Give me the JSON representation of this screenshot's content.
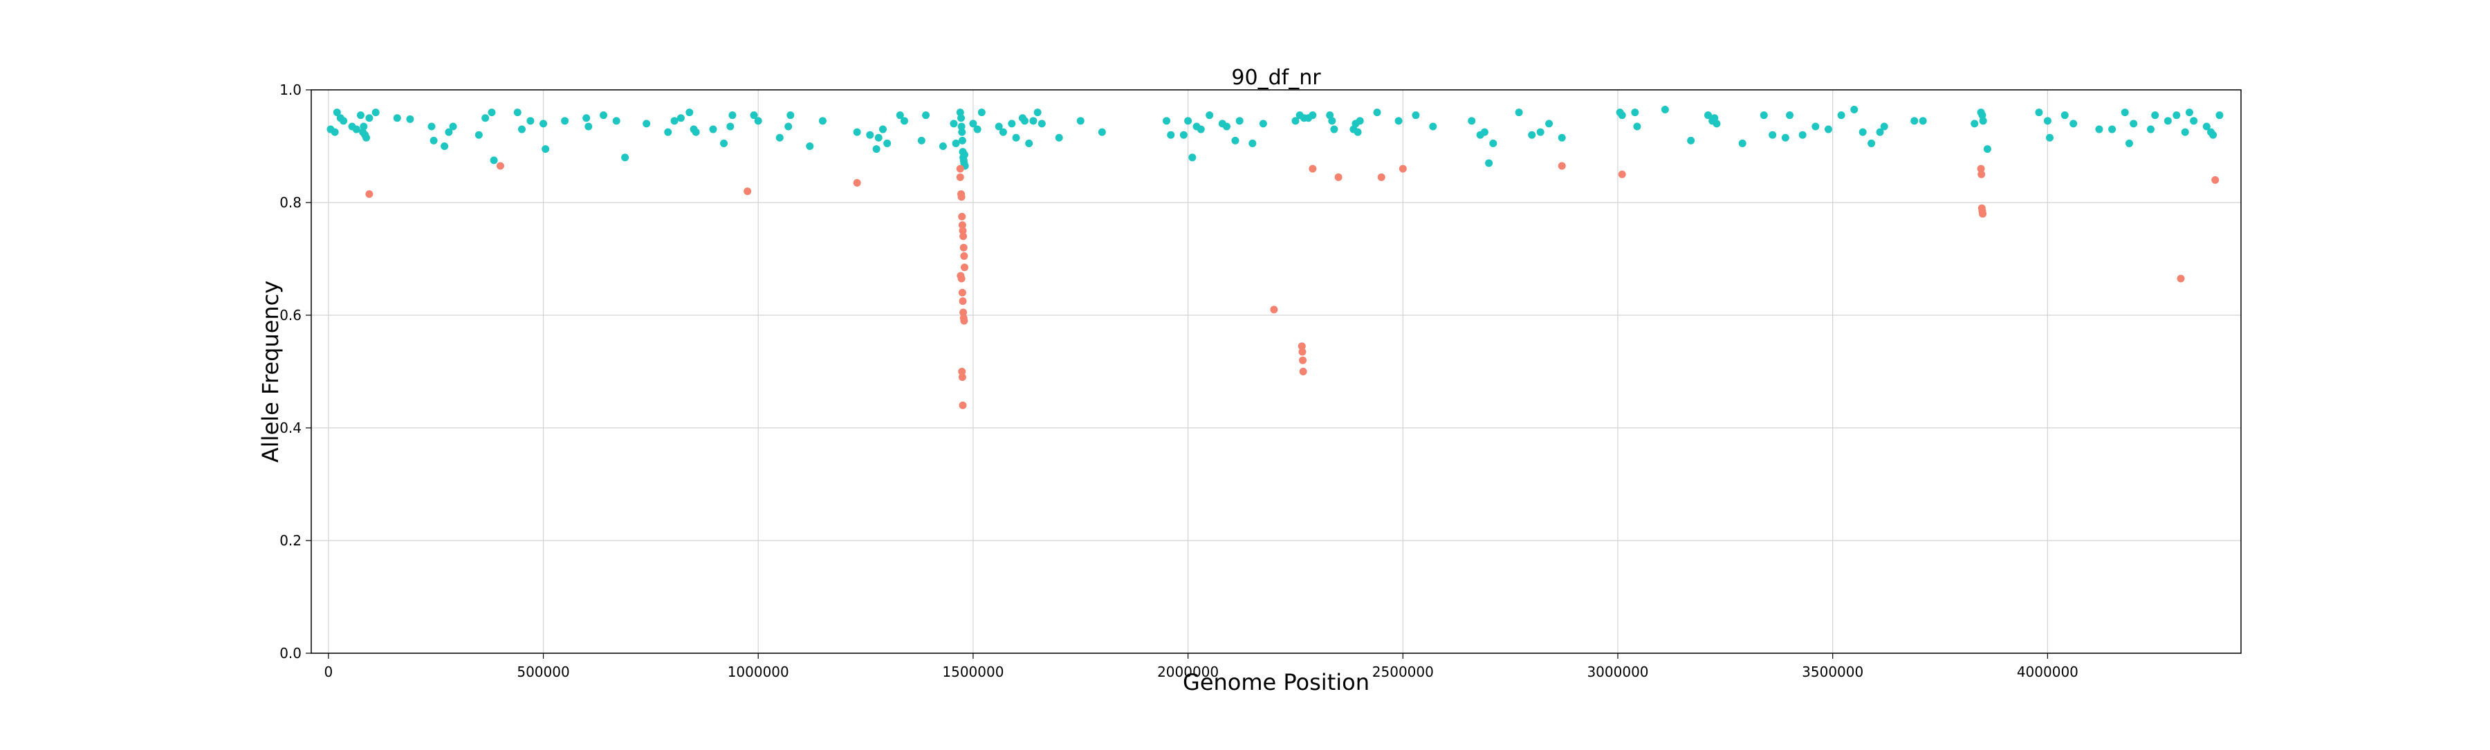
{
  "chart_data": {
    "type": "scatter",
    "title": "90_df_nr",
    "xlabel": "Genome Position",
    "ylabel": "Allele Frequency",
    "xlim": [
      -40000,
      4450000
    ],
    "ylim": [
      0.0,
      1.0
    ],
    "xticks": [
      0,
      500000,
      1000000,
      1500000,
      2000000,
      2500000,
      3000000,
      3500000,
      4000000
    ],
    "xtick_labels": [
      "0",
      "500000",
      "1000000",
      "1500000",
      "2000000",
      "2500000",
      "3000000",
      "3500000",
      "4000000"
    ],
    "yticks": [
      0.0,
      0.2,
      0.4,
      0.6,
      0.8,
      1.0
    ],
    "ytick_labels": [
      "0.0",
      "0.2",
      "0.4",
      "0.6",
      "0.8",
      "1.0"
    ],
    "grid": true,
    "series": [
      {
        "color": "#1ec6c2",
        "points": [
          [
            5000,
            0.93
          ],
          [
            15000,
            0.925
          ],
          [
            20000,
            0.96
          ],
          [
            28000,
            0.95
          ],
          [
            35000,
            0.945
          ],
          [
            55000,
            0.935
          ],
          [
            65000,
            0.93
          ],
          [
            75000,
            0.955
          ],
          [
            80000,
            0.925
          ],
          [
            82000,
            0.935
          ],
          [
            85000,
            0.92
          ],
          [
            88000,
            0.915
          ],
          [
            95000,
            0.95
          ],
          [
            110000,
            0.96
          ],
          [
            160000,
            0.95
          ],
          [
            190000,
            0.948
          ],
          [
            240000,
            0.935
          ],
          [
            245000,
            0.91
          ],
          [
            270000,
            0.9
          ],
          [
            280000,
            0.925
          ],
          [
            290000,
            0.935
          ],
          [
            350000,
            0.92
          ],
          [
            365000,
            0.95
          ],
          [
            380000,
            0.96
          ],
          [
            385000,
            0.875
          ],
          [
            440000,
            0.96
          ],
          [
            450000,
            0.93
          ],
          [
            470000,
            0.945
          ],
          [
            500000,
            0.94
          ],
          [
            505000,
            0.895
          ],
          [
            550000,
            0.945
          ],
          [
            600000,
            0.95
          ],
          [
            605000,
            0.935
          ],
          [
            640000,
            0.955
          ],
          [
            670000,
            0.945
          ],
          [
            690000,
            0.88
          ],
          [
            740000,
            0.94
          ],
          [
            790000,
            0.925
          ],
          [
            805000,
            0.945
          ],
          [
            820000,
            0.95
          ],
          [
            840000,
            0.96
          ],
          [
            850000,
            0.93
          ],
          [
            855000,
            0.925
          ],
          [
            895000,
            0.93
          ],
          [
            920000,
            0.905
          ],
          [
            935000,
            0.935
          ],
          [
            940000,
            0.955
          ],
          [
            990000,
            0.955
          ],
          [
            1000000,
            0.945
          ],
          [
            1050000,
            0.915
          ],
          [
            1070000,
            0.935
          ],
          [
            1075000,
            0.955
          ],
          [
            1120000,
            0.9
          ],
          [
            1150000,
            0.945
          ],
          [
            1230000,
            0.925
          ],
          [
            1260000,
            0.92
          ],
          [
            1275000,
            0.895
          ],
          [
            1280000,
            0.915
          ],
          [
            1290000,
            0.93
          ],
          [
            1300000,
            0.905
          ],
          [
            1330000,
            0.955
          ],
          [
            1340000,
            0.945
          ],
          [
            1380000,
            0.91
          ],
          [
            1390000,
            0.955
          ],
          [
            1430000,
            0.9
          ],
          [
            1455000,
            0.94
          ],
          [
            1460000,
            0.905
          ],
          [
            1470000,
            0.96
          ],
          [
            1472000,
            0.95
          ],
          [
            1473000,
            0.935
          ],
          [
            1474000,
            0.925
          ],
          [
            1475000,
            0.91
          ],
          [
            1476000,
            0.89
          ],
          [
            1477000,
            0.88
          ],
          [
            1478000,
            0.875
          ],
          [
            1479000,
            0.87
          ],
          [
            1480000,
            0.885
          ],
          [
            1481000,
            0.865
          ],
          [
            1500000,
            0.94
          ],
          [
            1510000,
            0.93
          ],
          [
            1520000,
            0.96
          ],
          [
            1560000,
            0.935
          ],
          [
            1570000,
            0.925
          ],
          [
            1590000,
            0.94
          ],
          [
            1600000,
            0.915
          ],
          [
            1615000,
            0.95
          ],
          [
            1620000,
            0.945
          ],
          [
            1630000,
            0.905
          ],
          [
            1640000,
            0.945
          ],
          [
            1650000,
            0.96
          ],
          [
            1660000,
            0.94
          ],
          [
            1700000,
            0.915
          ],
          [
            1750000,
            0.945
          ],
          [
            1800000,
            0.925
          ],
          [
            1950000,
            0.945
          ],
          [
            1960000,
            0.92
          ],
          [
            1990000,
            0.92
          ],
          [
            2000000,
            0.945
          ],
          [
            2010000,
            0.88
          ],
          [
            2020000,
            0.935
          ],
          [
            2030000,
            0.93
          ],
          [
            2050000,
            0.955
          ],
          [
            2080000,
            0.94
          ],
          [
            2090000,
            0.935
          ],
          [
            2110000,
            0.91
          ],
          [
            2120000,
            0.945
          ],
          [
            2150000,
            0.905
          ],
          [
            2175000,
            0.94
          ],
          [
            2250000,
            0.945
          ],
          [
            2260000,
            0.955
          ],
          [
            2270000,
            0.95
          ],
          [
            2280000,
            0.95
          ],
          [
            2290000,
            0.955
          ],
          [
            2330000,
            0.955
          ],
          [
            2335000,
            0.945
          ],
          [
            2340000,
            0.93
          ],
          [
            2385000,
            0.93
          ],
          [
            2390000,
            0.94
          ],
          [
            2395000,
            0.925
          ],
          [
            2400000,
            0.945
          ],
          [
            2440000,
            0.96
          ],
          [
            2490000,
            0.945
          ],
          [
            2530000,
            0.955
          ],
          [
            2570000,
            0.935
          ],
          [
            2660000,
            0.945
          ],
          [
            2680000,
            0.92
          ],
          [
            2690000,
            0.925
          ],
          [
            2700000,
            0.87
          ],
          [
            2710000,
            0.905
          ],
          [
            2770000,
            0.96
          ],
          [
            2800000,
            0.92
          ],
          [
            2820000,
            0.925
          ],
          [
            2840000,
            0.94
          ],
          [
            2870000,
            0.915
          ],
          [
            3005000,
            0.96
          ],
          [
            3010000,
            0.955
          ],
          [
            3040000,
            0.96
          ],
          [
            3045000,
            0.935
          ],
          [
            3110000,
            0.965
          ],
          [
            3170000,
            0.91
          ],
          [
            3210000,
            0.955
          ],
          [
            3220000,
            0.945
          ],
          [
            3225000,
            0.95
          ],
          [
            3230000,
            0.94
          ],
          [
            3290000,
            0.905
          ],
          [
            3340000,
            0.955
          ],
          [
            3360000,
            0.92
          ],
          [
            3390000,
            0.915
          ],
          [
            3400000,
            0.955
          ],
          [
            3430000,
            0.92
          ],
          [
            3460000,
            0.935
          ],
          [
            3490000,
            0.93
          ],
          [
            3520000,
            0.955
          ],
          [
            3550000,
            0.965
          ],
          [
            3570000,
            0.925
          ],
          [
            3590000,
            0.905
          ],
          [
            3610000,
            0.925
          ],
          [
            3620000,
            0.935
          ],
          [
            3690000,
            0.945
          ],
          [
            3710000,
            0.945
          ],
          [
            3830000,
            0.94
          ],
          [
            3845000,
            0.96
          ],
          [
            3848000,
            0.955
          ],
          [
            3850000,
            0.945
          ],
          [
            3860000,
            0.895
          ],
          [
            3980000,
            0.96
          ],
          [
            4000000,
            0.945
          ],
          [
            4005000,
            0.915
          ],
          [
            4040000,
            0.955
          ],
          [
            4060000,
            0.94
          ],
          [
            4120000,
            0.93
          ],
          [
            4150000,
            0.93
          ],
          [
            4180000,
            0.96
          ],
          [
            4190000,
            0.905
          ],
          [
            4200000,
            0.94
          ],
          [
            4240000,
            0.93
          ],
          [
            4250000,
            0.955
          ],
          [
            4280000,
            0.945
          ],
          [
            4300000,
            0.955
          ],
          [
            4320000,
            0.925
          ],
          [
            4330000,
            0.96
          ],
          [
            4340000,
            0.945
          ],
          [
            4370000,
            0.935
          ],
          [
            4380000,
            0.925
          ],
          [
            4385000,
            0.92
          ],
          [
            4400000,
            0.955
          ]
        ]
      },
      {
        "color": "#f4826f",
        "points": [
          [
            95000,
            0.815
          ],
          [
            400000,
            0.865
          ],
          [
            975000,
            0.82
          ],
          [
            1230000,
            0.835
          ],
          [
            1470000,
            0.86
          ],
          [
            1470000,
            0.845
          ],
          [
            1472000,
            0.815
          ],
          [
            1473000,
            0.81
          ],
          [
            1474000,
            0.775
          ],
          [
            1475000,
            0.76
          ],
          [
            1476000,
            0.75
          ],
          [
            1477000,
            0.74
          ],
          [
            1478000,
            0.72
          ],
          [
            1479000,
            0.705
          ],
          [
            1480000,
            0.685
          ],
          [
            1471000,
            0.67
          ],
          [
            1473000,
            0.665
          ],
          [
            1475000,
            0.64
          ],
          [
            1476000,
            0.625
          ],
          [
            1477000,
            0.605
          ],
          [
            1478000,
            0.595
          ],
          [
            1479000,
            0.59
          ],
          [
            1474000,
            0.5
          ],
          [
            1475000,
            0.49
          ],
          [
            1476000,
            0.44
          ],
          [
            2200000,
            0.61
          ],
          [
            2265000,
            0.545
          ],
          [
            2266000,
            0.535
          ],
          [
            2267000,
            0.52
          ],
          [
            2268000,
            0.5
          ],
          [
            2290000,
            0.86
          ],
          [
            2350000,
            0.845
          ],
          [
            2450000,
            0.845
          ],
          [
            2500000,
            0.86
          ],
          [
            2870000,
            0.865
          ],
          [
            3010000,
            0.85
          ],
          [
            3845000,
            0.86
          ],
          [
            3846000,
            0.85
          ],
          [
            3847000,
            0.79
          ],
          [
            3848000,
            0.785
          ],
          [
            3849000,
            0.78
          ],
          [
            4310000,
            0.665
          ],
          [
            4390000,
            0.84
          ]
        ]
      }
    ]
  }
}
